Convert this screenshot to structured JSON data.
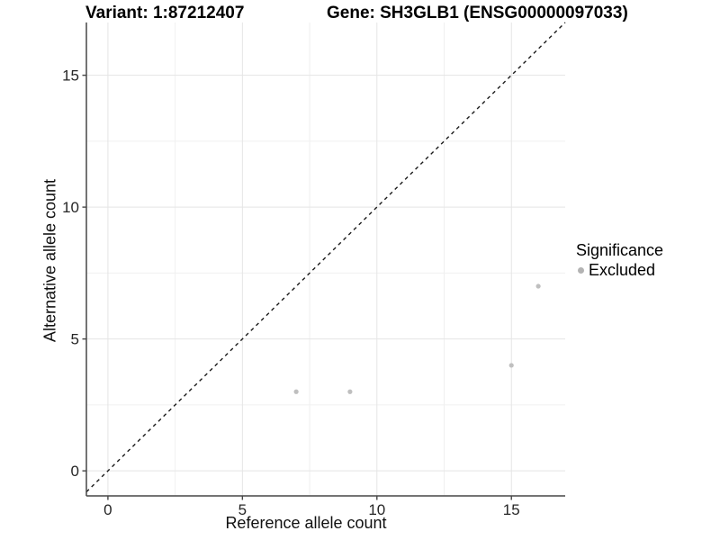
{
  "chart_data": {
    "type": "scatter",
    "title_left": "Variant: 1:87212407",
    "title_right": "Gene: SH3GLB1 (ENSG00000097033)",
    "xlabel": "Reference allele count",
    "ylabel": "Alternative allele count",
    "xlim": [
      -0.8,
      17.0
    ],
    "ylim": [
      -0.95,
      17.0
    ],
    "x_ticks": [
      0,
      5,
      10,
      15
    ],
    "y_ticks": [
      0,
      5,
      10,
      15
    ],
    "x_minor_gridlines": [
      2.5,
      7.5,
      12.5
    ],
    "y_minor_gridlines": [
      2.5,
      7.5,
      12.5
    ],
    "grid": true,
    "legend_position": "right",
    "legend_title": "Significance",
    "series": [
      {
        "name": "Excluded",
        "color": "#bfbfbf",
        "points": [
          [
            7,
            3
          ],
          [
            9,
            3
          ],
          [
            15,
            4
          ],
          [
            16,
            7
          ]
        ]
      }
    ],
    "reference_line": {
      "type": "identity y=x",
      "style": "dashed",
      "color": "#1a1a1a"
    }
  },
  "legend": {
    "key_color": "#b3b3b3"
  },
  "colors": {
    "background": "#ffffff",
    "grid_major": "#e5e5e5",
    "grid_minor": "#f0f0f0",
    "axis_line": "#474747",
    "tick_label": "#262626",
    "point": "#bfbfbf",
    "identity_line": "#1a1a1a"
  }
}
